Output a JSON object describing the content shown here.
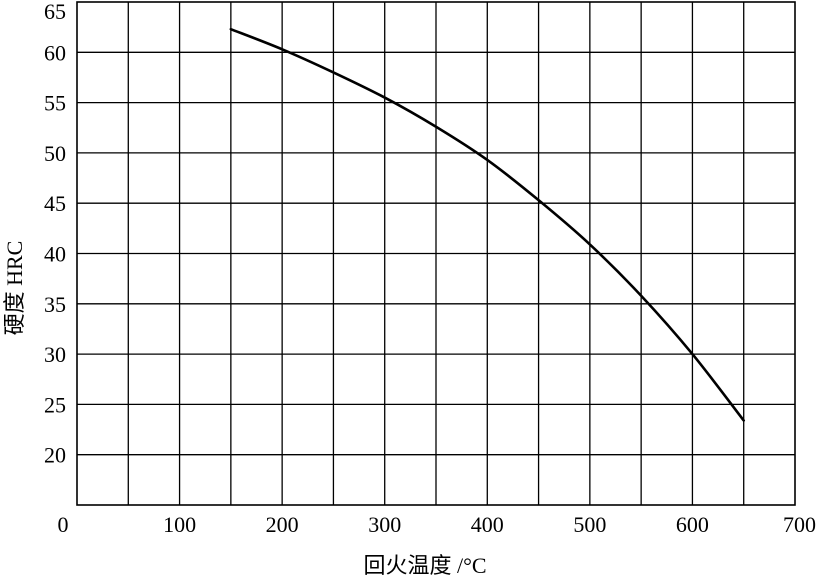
{
  "chart_data": {
    "type": "line",
    "title": "",
    "xlabel": "回火温度 /°C",
    "ylabel": "硬度 HRC",
    "xlim": [
      0,
      700
    ],
    "ylim": [
      15,
      65
    ],
    "x_ticks": [
      {
        "value": 0,
        "label": "0"
      },
      {
        "value": 100,
        "label": "100"
      },
      {
        "value": 200,
        "label": "200"
      },
      {
        "value": 300,
        "label": "300"
      },
      {
        "value": 400,
        "label": "400"
      },
      {
        "value": 500,
        "label": "500"
      },
      {
        "value": 600,
        "label": "600"
      },
      {
        "value": 700,
        "label": "700"
      }
    ],
    "y_ticks": [
      {
        "value": 20,
        "label": "20"
      },
      {
        "value": 25,
        "label": "25"
      },
      {
        "value": 30,
        "label": "30"
      },
      {
        "value": 35,
        "label": "35"
      },
      {
        "value": 40,
        "label": "40"
      },
      {
        "value": 45,
        "label": "45"
      },
      {
        "value": 50,
        "label": "50"
      },
      {
        "value": 55,
        "label": "55"
      },
      {
        "value": 60,
        "label": "60"
      },
      {
        "value": 65,
        "label": "65"
      }
    ],
    "grid": true,
    "x_grid_step": 50,
    "y_grid_step": 5,
    "legend": "none",
    "series": [
      {
        "x": [
          150,
          200,
          250,
          300,
          350,
          400,
          450,
          500,
          550,
          600,
          650
        ],
        "y": [
          62.3,
          60.3,
          58.0,
          55.5,
          52.6,
          49.3,
          45.3,
          40.9,
          35.8,
          30.0,
          23.4
        ]
      }
    ]
  }
}
